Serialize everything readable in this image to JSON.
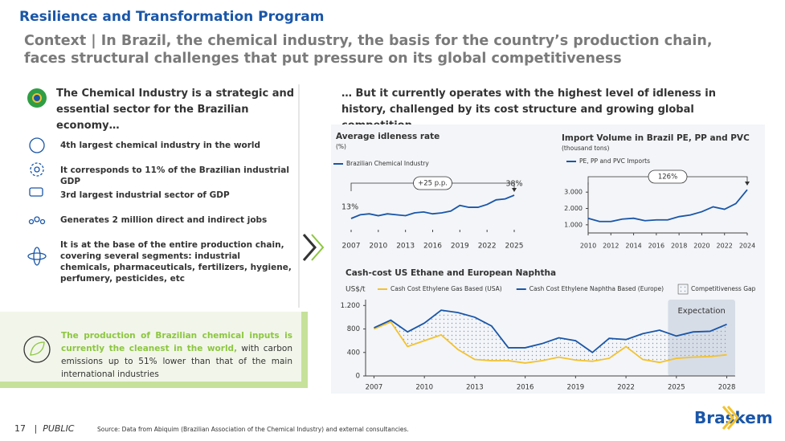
{
  "header": {
    "program": "Resilience and Transformation Program",
    "title": "Context | In Brazil, the chemical industry, the basis for the country’s production chain, faces structural challenges that put pressure on its global competitiveness"
  },
  "left": {
    "heading": "The Chemical Industry is a strategic and essential sector for the Brazilian economy…",
    "items": [
      "4th largest chemical industry in the world",
      "It corresponds to 11% of the Brazilian industrial GDP",
      "3rd largest industrial sector of GDP",
      "Generates 2 million direct and indirect jobs",
      "It is at the base of the entire production chain, covering several segments: industrial chemicals, pharmaceuticals, fertilizers, hygiene, perfumery, pesticides, etc"
    ],
    "callout_highlight": "The production of Brazilian chemical inputs is currently the cleanest in the world,",
    "callout_text": " with carbon emissions up to 51% lower than that of the main international industries"
  },
  "right": {
    "heading": "… But it currently operates with the highest level of idleness in history, challenged by its cost structure and growing global competition"
  },
  "chart_data": [
    {
      "type": "line",
      "title": "Average idleness rate",
      "subtitle": "(%)",
      "annotation": "+25 p.p.",
      "x": [
        2007,
        2008,
        2009,
        2010,
        2011,
        2012,
        2013,
        2014,
        2015,
        2016,
        2017,
        2018,
        2019,
        2020,
        2021,
        2022,
        2023,
        2024,
        2025
      ],
      "xlim": [
        2007,
        2025
      ],
      "xticks": [
        2007,
        2010,
        2013,
        2016,
        2019,
        2022,
        2025
      ],
      "series": [
        {
          "name": "Brazilian Chemical Industry",
          "color": "#1a56a8",
          "values": [
            13,
            17,
            18,
            16,
            18,
            17,
            16,
            19,
            20,
            18,
            19,
            21,
            27,
            25,
            25,
            28,
            33,
            34,
            38
          ],
          "value_labels": [
            "13%",
            null,
            null,
            null,
            null,
            null,
            null,
            null,
            null,
            null,
            null,
            null,
            null,
            null,
            null,
            null,
            null,
            null,
            "38%"
          ]
        }
      ]
    },
    {
      "type": "line",
      "title": "Import Volume in Brazil PE, PP and PVC",
      "subtitle": "(thousand tons)",
      "annotation": "126%",
      "x": [
        2010,
        2011,
        2012,
        2013,
        2014,
        2015,
        2016,
        2017,
        2018,
        2019,
        2020,
        2021,
        2022,
        2023,
        2024
      ],
      "xlim": [
        2010,
        2024
      ],
      "xticks": [
        2010,
        2012,
        2014,
        2016,
        2018,
        2020,
        2022,
        2024
      ],
      "ylim": [
        500,
        3600
      ],
      "yticks": [
        {
          "value": 1000,
          "label": "1.000"
        },
        {
          "value": 2000,
          "label": "2.000"
        },
        {
          "value": 3000,
          "label": "3.000"
        }
      ],
      "series": [
        {
          "name": "PE, PP and PVC Imports",
          "color": "#1a56a8",
          "values": [
            1400,
            1200,
            1200,
            1350,
            1400,
            1250,
            1300,
            1300,
            1500,
            1600,
            1800,
            2100,
            1950,
            2300,
            3150
          ]
        }
      ]
    },
    {
      "type": "line",
      "title": "Cash-cost US Ethane and European Naphtha",
      "y_label": "US$/t",
      "area_label": "Competitiveness Gap",
      "expectation": {
        "label": "Expectation",
        "from": 2024.5,
        "to": 2028.5
      },
      "x": [
        2007,
        2008,
        2009,
        2010,
        2011,
        2012,
        2013,
        2014,
        2015,
        2016,
        2017,
        2018,
        2019,
        2020,
        2021,
        2022,
        2023,
        2024,
        2025,
        2026,
        2027,
        2028
      ],
      "xlim": [
        2006.5,
        2028.5
      ],
      "xticks": [
        2007,
        2010,
        2013,
        2016,
        2019,
        2022,
        2025,
        2028
      ],
      "ylim": [
        0,
        1300
      ],
      "yticks": [
        0,
        400,
        800,
        {
          "value": 1200,
          "label": "1.200"
        }
      ],
      "series": [
        {
          "name": "Cash Cost Ethylene Gas Based (USA)",
          "color": "#f2c230",
          "values": [
            800,
            920,
            500,
            600,
            700,
            450,
            280,
            260,
            260,
            220,
            260,
            320,
            270,
            250,
            300,
            500,
            280,
            230,
            300,
            320,
            330,
            360
          ]
        },
        {
          "name": "Cash Cost Ethylene Naphtha Based (Europe)",
          "color": "#1a56a8",
          "values": [
            820,
            950,
            750,
            900,
            1120,
            1080,
            1000,
            850,
            480,
            480,
            550,
            650,
            600,
            400,
            640,
            620,
            720,
            780,
            680,
            750,
            760,
            880
          ]
        }
      ]
    }
  ],
  "footer": {
    "page": "17",
    "classification": "PUBLIC",
    "source": "Source: Data from Abiquim (Brazilian Association of the Chemical Industry) and external consultancies.",
    "logo": "Braskem"
  }
}
